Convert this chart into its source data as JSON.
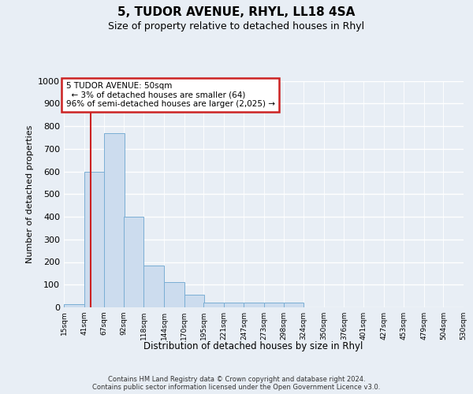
{
  "title": "5, TUDOR AVENUE, RHYL, LL18 4SA",
  "subtitle": "Size of property relative to detached houses in Rhyl",
  "xlabel": "Distribution of detached houses by size in Rhyl",
  "ylabel": "Number of detached properties",
  "footer_line1": "Contains HM Land Registry data © Crown copyright and database right 2024.",
  "footer_line2": "Contains public sector information licensed under the Open Government Licence v3.0.",
  "annotation_title": "5 TUDOR AVENUE: 50sqm",
  "annotation_line1": "← 3% of detached houses are smaller (64)",
  "annotation_line2": "96% of semi-detached houses are larger (2,025) →",
  "property_size_sqm": 50,
  "bins": [
    15,
    41,
    67,
    92,
    118,
    144,
    170,
    195,
    221,
    247,
    273,
    298,
    324,
    350,
    376,
    401,
    427,
    453,
    479,
    504,
    530
  ],
  "counts": [
    15,
    600,
    770,
    400,
    185,
    110,
    55,
    20,
    20,
    20,
    20,
    20,
    0,
    0,
    0,
    0,
    0,
    0,
    0,
    0
  ],
  "bar_color": "#ccdcee",
  "bar_edge_color": "#7aaed4",
  "marker_color": "#cc2222",
  "annotation_box_edge_color": "#cc2222",
  "bg_color": "#e8eef5",
  "grid_color": "#ffffff",
  "ylim": [
    0,
    1000
  ],
  "yticks": [
    0,
    100,
    200,
    300,
    400,
    500,
    600,
    700,
    800,
    900,
    1000
  ]
}
